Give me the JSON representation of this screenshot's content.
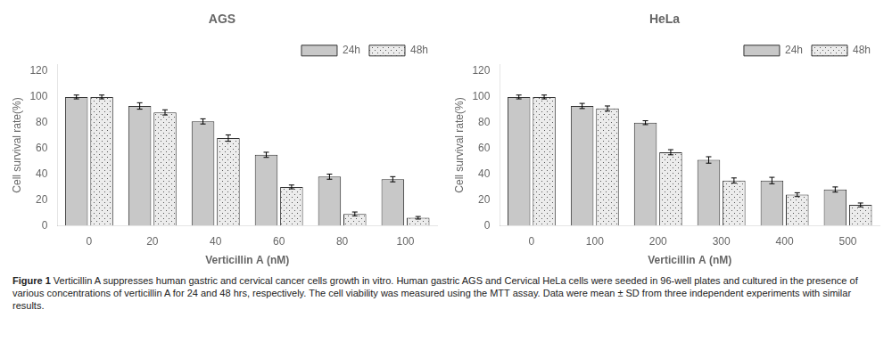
{
  "chart_data": [
    {
      "type": "bar",
      "title": "AGS",
      "categories": [
        "0",
        "20",
        "40",
        "60",
        "80",
        "100"
      ],
      "xlabel": "Verticillin A (nM)",
      "ylabel": "Cell survival rate(%)",
      "series": [
        {
          "name": "24h",
          "color": "#c8c8c8",
          "values": [
            100,
            93,
            81,
            55,
            38,
            36
          ],
          "errors": [
            1.5,
            2.5,
            2.0,
            2.0,
            2.0,
            2.0
          ]
        },
        {
          "name": "48h",
          "color": "#ececec",
          "values": [
            100,
            88,
            68,
            30,
            9,
            6
          ],
          "errors": [
            1.5,
            2.0,
            2.5,
            1.5,
            1.5,
            1.0
          ]
        }
      ],
      "ylim": [
        0,
        125
      ],
      "yticks": [
        0,
        20,
        40,
        60,
        80,
        100,
        120
      ],
      "grid": false,
      "legend": "upper right"
    },
    {
      "type": "bar",
      "title": "HeLa",
      "categories": [
        "0",
        "100",
        "200",
        "300",
        "400",
        "500"
      ],
      "xlabel": "Verticillin A (nM)",
      "ylabel": "Cell survival rate(%)",
      "series": [
        {
          "name": "24h",
          "color": "#c8c8c8",
          "values": [
            100,
            93,
            80,
            51,
            35,
            28
          ],
          "errors": [
            1.5,
            2.0,
            1.5,
            2.5,
            2.5,
            2.0
          ]
        },
        {
          "name": "48h",
          "color": "#ececec",
          "values": [
            100,
            91,
            57,
            35,
            24,
            16
          ],
          "errors": [
            1.5,
            2.0,
            2.0,
            2.0,
            1.5,
            1.5
          ]
        }
      ],
      "ylim": [
        0,
        125
      ],
      "yticks": [
        0,
        20,
        40,
        60,
        80,
        100,
        120
      ],
      "grid": false,
      "legend": "upper right"
    }
  ],
  "caption_title": "Figure 1",
  "caption": "Verticillin A suppresses human gastric and cervical cancer cells growth in vitro. Human gastric AGS and Cervical HeLa cells were seeded in 96-well plates and cultured in the presence of various concentrations of verticillin A for 24 and 48 hrs, respectively. The cell viability was measured using the MTT assay. Data were mean ± SD from three independent experiments with similar results."
}
